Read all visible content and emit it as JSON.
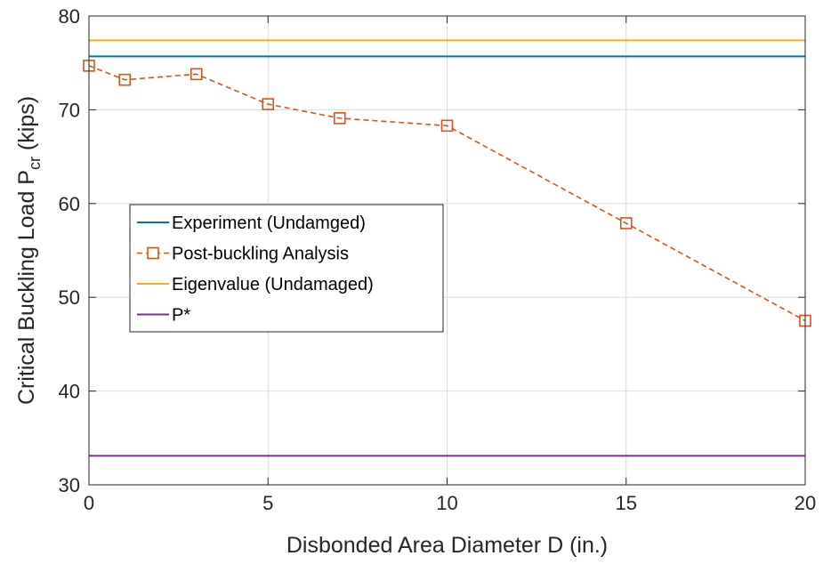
{
  "chart_data": {
    "type": "line",
    "title": "",
    "xlabel": "Disbonded Area Diameter D (in.)",
    "ylabel": {
      "main": "Critical Buckling Load P",
      "subscript": "cr",
      "suffix": " (kips)"
    },
    "xlim": [
      0,
      20
    ],
    "ylim": [
      30,
      80
    ],
    "xticks": [
      0,
      5,
      10,
      15,
      20
    ],
    "yticks": [
      30,
      40,
      50,
      60,
      70,
      80
    ],
    "grid": true,
    "legend_position": "center-left",
    "series": [
      {
        "name": "Experiment (Undamged)",
        "kind": "hline",
        "y": 75.7,
        "color": "#0072BD",
        "style": "solid",
        "marker": "none"
      },
      {
        "name": "Post-buckling Analysis",
        "kind": "line",
        "x": [
          0,
          1,
          3,
          5,
          7,
          10,
          15,
          20
        ],
        "y": [
          74.7,
          73.2,
          73.8,
          70.6,
          69.1,
          68.3,
          57.9,
          47.5
        ],
        "color": "#D95319",
        "style": "dashed",
        "marker": "square"
      },
      {
        "name": "Eigenvalue (Undamaged)",
        "kind": "hline",
        "y": 77.4,
        "color": "#EDB120",
        "style": "solid",
        "marker": "none"
      },
      {
        "name": "P*",
        "kind": "hline",
        "y": 33.1,
        "color": "#7E2F8E",
        "style": "solid",
        "marker": "none"
      }
    ]
  }
}
